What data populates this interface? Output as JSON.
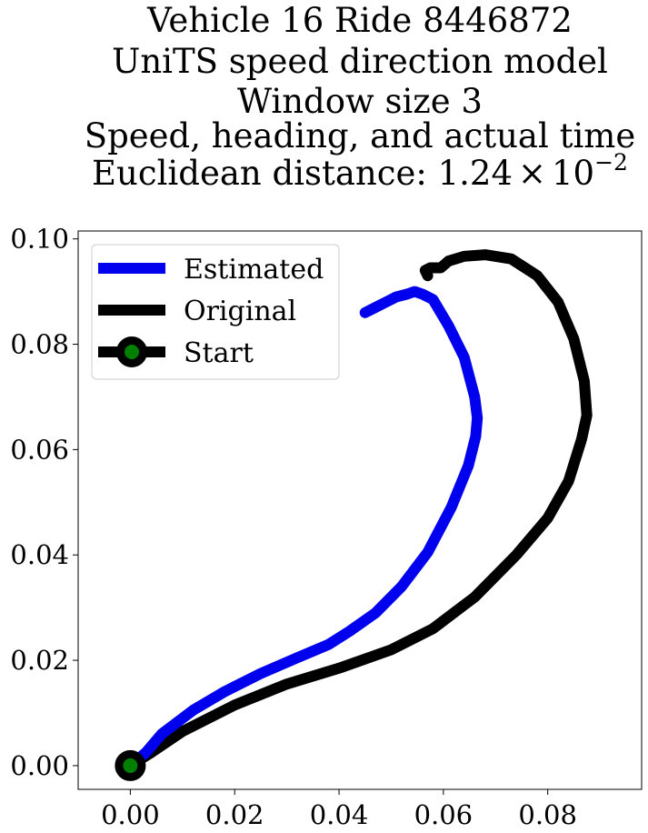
{
  "chart_data": {
    "type": "line",
    "title_lines": [
      "Vehicle 16 Ride 8446872",
      "UniTS speed direction model",
      "Window size 3",
      "Speed, heading, and actual time"
    ],
    "title_metric": {
      "prefix": "Euclidean distance: ",
      "mantissa": "1.24",
      "times": "×",
      "base": "10",
      "exponent": "−2"
    },
    "xlabel": "",
    "ylabel": "",
    "xlim": [
      -0.01,
      0.098
    ],
    "ylim": [
      -0.0045,
      0.1015
    ],
    "x_ticks": [
      {
        "value": 0.0,
        "label": "0.00"
      },
      {
        "value": 0.02,
        "label": "0.02"
      },
      {
        "value": 0.04,
        "label": "0.04"
      },
      {
        "value": 0.06,
        "label": "0.06"
      },
      {
        "value": 0.08,
        "label": "0.08"
      }
    ],
    "y_ticks": [
      {
        "value": 0.0,
        "label": "0.00"
      },
      {
        "value": 0.02,
        "label": "0.02"
      },
      {
        "value": 0.04,
        "label": "0.04"
      },
      {
        "value": 0.06,
        "label": "0.06"
      },
      {
        "value": 0.08,
        "label": "0.08"
      },
      {
        "value": 0.1,
        "label": "0.10"
      }
    ],
    "grid": false,
    "legend_position": "top-left",
    "legend": [
      {
        "label": "Estimated",
        "color": "#0000ee",
        "kind": "line"
      },
      {
        "label": "Original",
        "color": "#000000",
        "kind": "line"
      },
      {
        "label": "Start",
        "color": "#000000",
        "marker_color": "#008000",
        "kind": "marker"
      }
    ],
    "series": [
      {
        "name": "Original",
        "color": "#000000",
        "points": [
          [
            0.0,
            0.0
          ],
          [
            0.004,
            0.0025
          ],
          [
            0.01,
            0.0065
          ],
          [
            0.02,
            0.0115
          ],
          [
            0.03,
            0.0155
          ],
          [
            0.04,
            0.0185
          ],
          [
            0.05,
            0.022
          ],
          [
            0.058,
            0.026
          ],
          [
            0.066,
            0.032
          ],
          [
            0.074,
            0.04
          ],
          [
            0.08,
            0.047
          ],
          [
            0.084,
            0.054
          ],
          [
            0.0865,
            0.062
          ],
          [
            0.0875,
            0.0665
          ],
          [
            0.087,
            0.073
          ],
          [
            0.085,
            0.081
          ],
          [
            0.082,
            0.088
          ],
          [
            0.078,
            0.093
          ],
          [
            0.073,
            0.0962
          ],
          [
            0.068,
            0.097
          ],
          [
            0.064,
            0.0967
          ],
          [
            0.061,
            0.0958
          ],
          [
            0.0595,
            0.0945
          ],
          [
            0.0575,
            0.0945
          ],
          [
            0.0565,
            0.094
          ],
          [
            0.057,
            0.093
          ]
        ]
      },
      {
        "name": "Estimated",
        "color": "#0000ee",
        "points": [
          [
            0.0,
            0.0
          ],
          [
            0.003,
            0.0025
          ],
          [
            0.006,
            0.006
          ],
          [
            0.012,
            0.0105
          ],
          [
            0.018,
            0.014
          ],
          [
            0.025,
            0.0175
          ],
          [
            0.032,
            0.0205
          ],
          [
            0.038,
            0.023
          ],
          [
            0.042,
            0.0255
          ],
          [
            0.047,
            0.029
          ],
          [
            0.052,
            0.034
          ],
          [
            0.057,
            0.0405
          ],
          [
            0.0615,
            0.049
          ],
          [
            0.0648,
            0.057
          ],
          [
            0.0662,
            0.0625
          ],
          [
            0.0665,
            0.066
          ],
          [
            0.066,
            0.07
          ],
          [
            0.064,
            0.0775
          ],
          [
            0.061,
            0.0835
          ],
          [
            0.058,
            0.0885
          ],
          [
            0.056,
            0.0895
          ],
          [
            0.0545,
            0.09
          ],
          [
            0.053,
            0.0895
          ],
          [
            0.051,
            0.089
          ],
          [
            0.049,
            0.088
          ],
          [
            0.047,
            0.087
          ],
          [
            0.045,
            0.086
          ]
        ]
      }
    ],
    "start_point": {
      "name": "Start",
      "x": 0.0,
      "y": 0.0,
      "marker_color": "#008000",
      "edge_color": "#000000"
    }
  }
}
